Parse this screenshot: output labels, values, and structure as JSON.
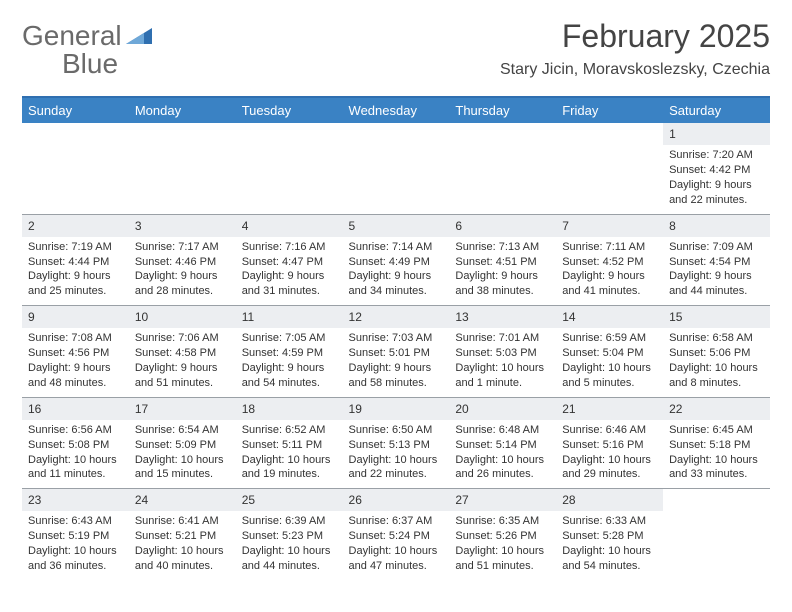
{
  "logo": {
    "word1": "General",
    "word2": "Blue",
    "mark_color": "#2f6fb0",
    "text_color_gray": "#6a6a6a"
  },
  "header": {
    "title": "February 2025",
    "subtitle": "Stary Jicin, Moravskoslezsky, Czechia"
  },
  "colors": {
    "header_bar": "#3a82c4",
    "header_rule": "#2f6fb0",
    "row_divider": "#9aa0a6",
    "daynum_bg": "#eceef1",
    "text": "#333333",
    "background": "#ffffff"
  },
  "typography": {
    "title_fontsize": 32,
    "subtitle_fontsize": 16,
    "dayheader_fontsize": 13,
    "daynum_fontsize": 12,
    "body_fontsize": 11,
    "font_family": "Arial"
  },
  "calendar": {
    "day_headers": [
      "Sunday",
      "Monday",
      "Tuesday",
      "Wednesday",
      "Thursday",
      "Friday",
      "Saturday"
    ],
    "weeks": [
      [
        {
          "blank": true
        },
        {
          "blank": true
        },
        {
          "blank": true
        },
        {
          "blank": true
        },
        {
          "blank": true
        },
        {
          "blank": true
        },
        {
          "n": "1",
          "sunrise": "Sunrise: 7:20 AM",
          "sunset": "Sunset: 4:42 PM",
          "daylight": "Daylight: 9 hours and 22 minutes."
        }
      ],
      [
        {
          "n": "2",
          "sunrise": "Sunrise: 7:19 AM",
          "sunset": "Sunset: 4:44 PM",
          "daylight": "Daylight: 9 hours and 25 minutes."
        },
        {
          "n": "3",
          "sunrise": "Sunrise: 7:17 AM",
          "sunset": "Sunset: 4:46 PM",
          "daylight": "Daylight: 9 hours and 28 minutes."
        },
        {
          "n": "4",
          "sunrise": "Sunrise: 7:16 AM",
          "sunset": "Sunset: 4:47 PM",
          "daylight": "Daylight: 9 hours and 31 minutes."
        },
        {
          "n": "5",
          "sunrise": "Sunrise: 7:14 AM",
          "sunset": "Sunset: 4:49 PM",
          "daylight": "Daylight: 9 hours and 34 minutes."
        },
        {
          "n": "6",
          "sunrise": "Sunrise: 7:13 AM",
          "sunset": "Sunset: 4:51 PM",
          "daylight": "Daylight: 9 hours and 38 minutes."
        },
        {
          "n": "7",
          "sunrise": "Sunrise: 7:11 AM",
          "sunset": "Sunset: 4:52 PM",
          "daylight": "Daylight: 9 hours and 41 minutes."
        },
        {
          "n": "8",
          "sunrise": "Sunrise: 7:09 AM",
          "sunset": "Sunset: 4:54 PM",
          "daylight": "Daylight: 9 hours and 44 minutes."
        }
      ],
      [
        {
          "n": "9",
          "sunrise": "Sunrise: 7:08 AM",
          "sunset": "Sunset: 4:56 PM",
          "daylight": "Daylight: 9 hours and 48 minutes."
        },
        {
          "n": "10",
          "sunrise": "Sunrise: 7:06 AM",
          "sunset": "Sunset: 4:58 PM",
          "daylight": "Daylight: 9 hours and 51 minutes."
        },
        {
          "n": "11",
          "sunrise": "Sunrise: 7:05 AM",
          "sunset": "Sunset: 4:59 PM",
          "daylight": "Daylight: 9 hours and 54 minutes."
        },
        {
          "n": "12",
          "sunrise": "Sunrise: 7:03 AM",
          "sunset": "Sunset: 5:01 PM",
          "daylight": "Daylight: 9 hours and 58 minutes."
        },
        {
          "n": "13",
          "sunrise": "Sunrise: 7:01 AM",
          "sunset": "Sunset: 5:03 PM",
          "daylight": "Daylight: 10 hours and 1 minute."
        },
        {
          "n": "14",
          "sunrise": "Sunrise: 6:59 AM",
          "sunset": "Sunset: 5:04 PM",
          "daylight": "Daylight: 10 hours and 5 minutes."
        },
        {
          "n": "15",
          "sunrise": "Sunrise: 6:58 AM",
          "sunset": "Sunset: 5:06 PM",
          "daylight": "Daylight: 10 hours and 8 minutes."
        }
      ],
      [
        {
          "n": "16",
          "sunrise": "Sunrise: 6:56 AM",
          "sunset": "Sunset: 5:08 PM",
          "daylight": "Daylight: 10 hours and 11 minutes."
        },
        {
          "n": "17",
          "sunrise": "Sunrise: 6:54 AM",
          "sunset": "Sunset: 5:09 PM",
          "daylight": "Daylight: 10 hours and 15 minutes."
        },
        {
          "n": "18",
          "sunrise": "Sunrise: 6:52 AM",
          "sunset": "Sunset: 5:11 PM",
          "daylight": "Daylight: 10 hours and 19 minutes."
        },
        {
          "n": "19",
          "sunrise": "Sunrise: 6:50 AM",
          "sunset": "Sunset: 5:13 PM",
          "daylight": "Daylight: 10 hours and 22 minutes."
        },
        {
          "n": "20",
          "sunrise": "Sunrise: 6:48 AM",
          "sunset": "Sunset: 5:14 PM",
          "daylight": "Daylight: 10 hours and 26 minutes."
        },
        {
          "n": "21",
          "sunrise": "Sunrise: 6:46 AM",
          "sunset": "Sunset: 5:16 PM",
          "daylight": "Daylight: 10 hours and 29 minutes."
        },
        {
          "n": "22",
          "sunrise": "Sunrise: 6:45 AM",
          "sunset": "Sunset: 5:18 PM",
          "daylight": "Daylight: 10 hours and 33 minutes."
        }
      ],
      [
        {
          "n": "23",
          "sunrise": "Sunrise: 6:43 AM",
          "sunset": "Sunset: 5:19 PM",
          "daylight": "Daylight: 10 hours and 36 minutes."
        },
        {
          "n": "24",
          "sunrise": "Sunrise: 6:41 AM",
          "sunset": "Sunset: 5:21 PM",
          "daylight": "Daylight: 10 hours and 40 minutes."
        },
        {
          "n": "25",
          "sunrise": "Sunrise: 6:39 AM",
          "sunset": "Sunset: 5:23 PM",
          "daylight": "Daylight: 10 hours and 44 minutes."
        },
        {
          "n": "26",
          "sunrise": "Sunrise: 6:37 AM",
          "sunset": "Sunset: 5:24 PM",
          "daylight": "Daylight: 10 hours and 47 minutes."
        },
        {
          "n": "27",
          "sunrise": "Sunrise: 6:35 AM",
          "sunset": "Sunset: 5:26 PM",
          "daylight": "Daylight: 10 hours and 51 minutes."
        },
        {
          "n": "28",
          "sunrise": "Sunrise: 6:33 AM",
          "sunset": "Sunset: 5:28 PM",
          "daylight": "Daylight: 10 hours and 54 minutes."
        },
        {
          "blank": true
        }
      ]
    ]
  }
}
